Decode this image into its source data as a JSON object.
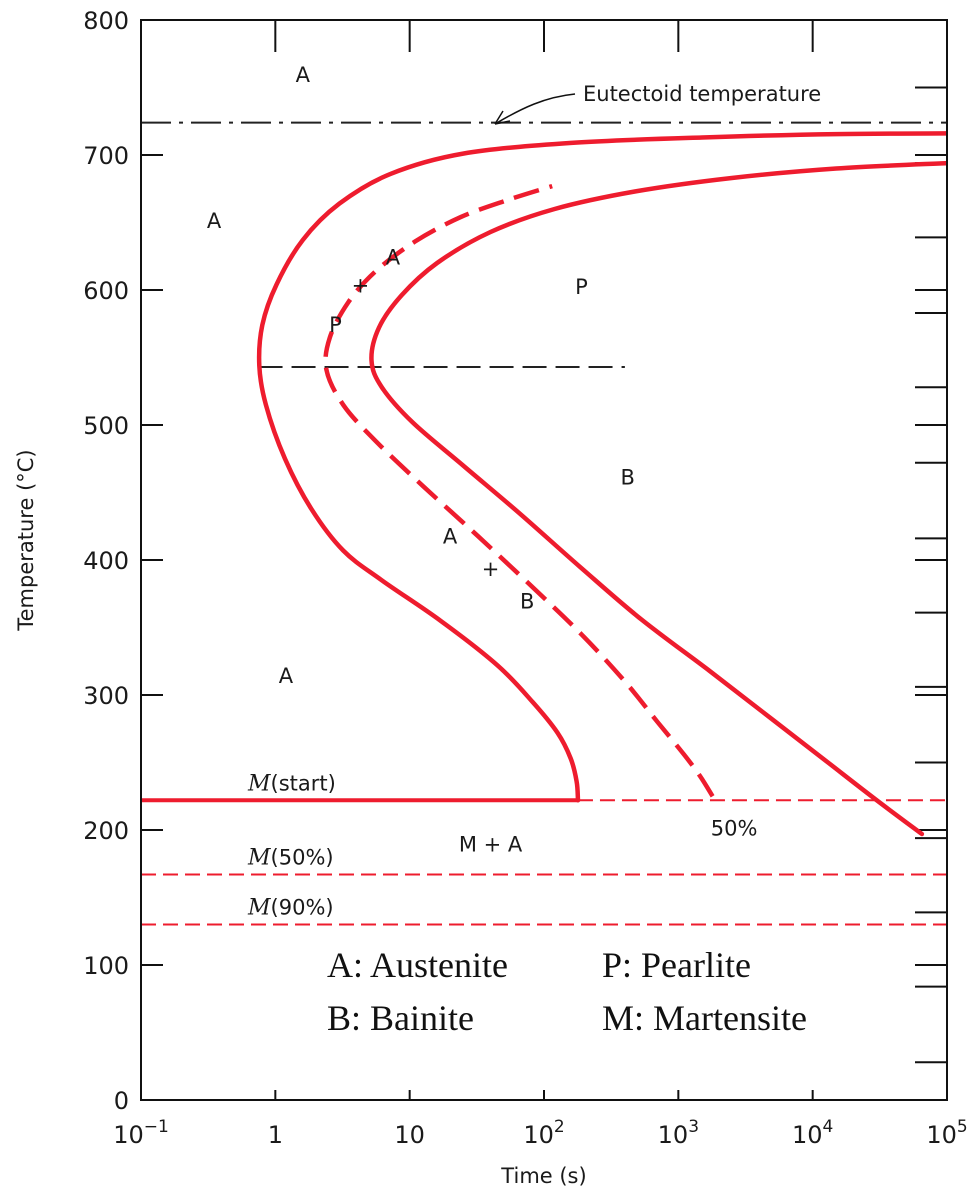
{
  "chart_data": {
    "type": "line",
    "xlabel": "Time (s)",
    "ylabel": "Temperature (°C)",
    "x_scale": "log",
    "xlim": [
      0.1,
      100000
    ],
    "ylim": [
      0,
      800
    ],
    "x_ticks": [
      {
        "value": 0.1,
        "base": "10",
        "exp": "−1"
      },
      {
        "value": 1,
        "base": "1",
        "exp": ""
      },
      {
        "value": 10,
        "base": "10",
        "exp": ""
      },
      {
        "value": 100,
        "base": "10",
        "exp": "2"
      },
      {
        "value": 1000,
        "base": "10",
        "exp": "3"
      },
      {
        "value": 10000,
        "base": "10",
        "exp": "4"
      },
      {
        "value": 100000,
        "base": "10",
        "exp": "5"
      }
    ],
    "y_ticks": [
      "0",
      "100",
      "200",
      "300",
      "400",
      "500",
      "600",
      "700",
      "800"
    ],
    "right_minor_ticks": [
      28,
      84,
      139,
      194,
      250,
      306,
      361,
      416,
      472,
      528,
      583,
      639,
      694,
      750
    ],
    "grid": false,
    "colors": {
      "curve": "#ee1c2e",
      "reference": "#222222",
      "axis": "#111111"
    },
    "curves": [
      {
        "name": "start",
        "style": "solid",
        "points": [
          [
            179,
            222
          ],
          [
            175,
            236
          ],
          [
            158,
            253
          ],
          [
            126,
            272
          ],
          [
            82,
            295
          ],
          [
            45,
            322
          ],
          [
            17,
            355
          ],
          [
            6.2,
            385
          ],
          [
            3.2,
            407
          ],
          [
            1.85,
            438
          ],
          [
            1.18,
            475
          ],
          [
            0.85,
            515
          ],
          [
            0.76,
            544
          ],
          [
            0.8,
            574
          ],
          [
            1.02,
            604
          ],
          [
            1.6,
            637
          ],
          [
            3.0,
            664
          ],
          [
            7.2,
            686
          ],
          [
            25,
            701
          ],
          [
            160,
            709
          ],
          [
            1500,
            713
          ],
          [
            15000,
            715.5
          ],
          [
            100000,
            716
          ]
        ]
      },
      {
        "name": "50%",
        "style": "dashed",
        "points": [
          [
            1800,
            225
          ],
          [
            1450,
            240
          ],
          [
            1100,
            256
          ],
          [
            700,
            280
          ],
          [
            400,
            310
          ],
          [
            190,
            345
          ],
          [
            82,
            380
          ],
          [
            32,
            418
          ],
          [
            12.5,
            455
          ],
          [
            5.6,
            488
          ],
          [
            3.2,
            515
          ],
          [
            2.4,
            541
          ],
          [
            2.55,
            565
          ],
          [
            3.5,
            591
          ],
          [
            5.6,
            614
          ],
          [
            11,
            636
          ],
          [
            24,
            654
          ],
          [
            55,
            667
          ],
          [
            115,
            677
          ]
        ]
      },
      {
        "name": "finish",
        "style": "solid",
        "points": [
          [
            65000,
            197
          ],
          [
            30000,
            222
          ],
          [
            13000,
            250
          ],
          [
            5000,
            282
          ],
          [
            1700,
            318
          ],
          [
            530,
            356
          ],
          [
            185,
            395
          ],
          [
            65,
            435
          ],
          [
            25,
            470
          ],
          [
            10.5,
            502
          ],
          [
            6.2,
            528
          ],
          [
            5.2,
            548
          ],
          [
            5.9,
            572
          ],
          [
            8.7,
            596
          ],
          [
            16,
            620
          ],
          [
            40,
            643
          ],
          [
            120,
            660
          ],
          [
            480,
            673
          ],
          [
            2500,
            683
          ],
          [
            15000,
            690
          ],
          [
            100000,
            694
          ]
        ]
      }
    ],
    "m_lines": [
      {
        "label": "(start)",
        "temperature": 222,
        "solid_to": 179
      },
      {
        "label": "(50%)",
        "temperature": 167
      },
      {
        "label": "(90%)",
        "temperature": 130
      }
    ],
    "m_symbol": "M",
    "eutectoid": {
      "label": "Eutectoid temperature",
      "temperature": 724
    },
    "nose_line": {
      "temperature": 543,
      "x_from": 0.75,
      "x_to": 400
    },
    "regions": [
      {
        "text": "A",
        "x": 1.6,
        "y": 760
      },
      {
        "text": "A",
        "x": 0.35,
        "y": 652
      },
      {
        "text": "P",
        "x": 190,
        "y": 603
      },
      {
        "text": "A",
        "x": 7.5,
        "y": 625
      },
      {
        "text": "+",
        "x": 4.3,
        "y": 604
      },
      {
        "text": "P",
        "x": 2.8,
        "y": 575
      },
      {
        "text": "B",
        "x": 420,
        "y": 462
      },
      {
        "text": "A",
        "x": 20,
        "y": 418
      },
      {
        "text": "+",
        "x": 40,
        "y": 394
      },
      {
        "text": "B",
        "x": 75,
        "y": 370
      },
      {
        "text": "A",
        "x": 1.2,
        "y": 315
      },
      {
        "text": "M + A",
        "x": 40,
        "y": 190
      },
      {
        "text": "50%",
        "x": 2600,
        "y": 202
      }
    ],
    "legend": [
      "A: Austenite",
      "P: Pearlite",
      "B: Bainite",
      "M: Martensite"
    ]
  }
}
